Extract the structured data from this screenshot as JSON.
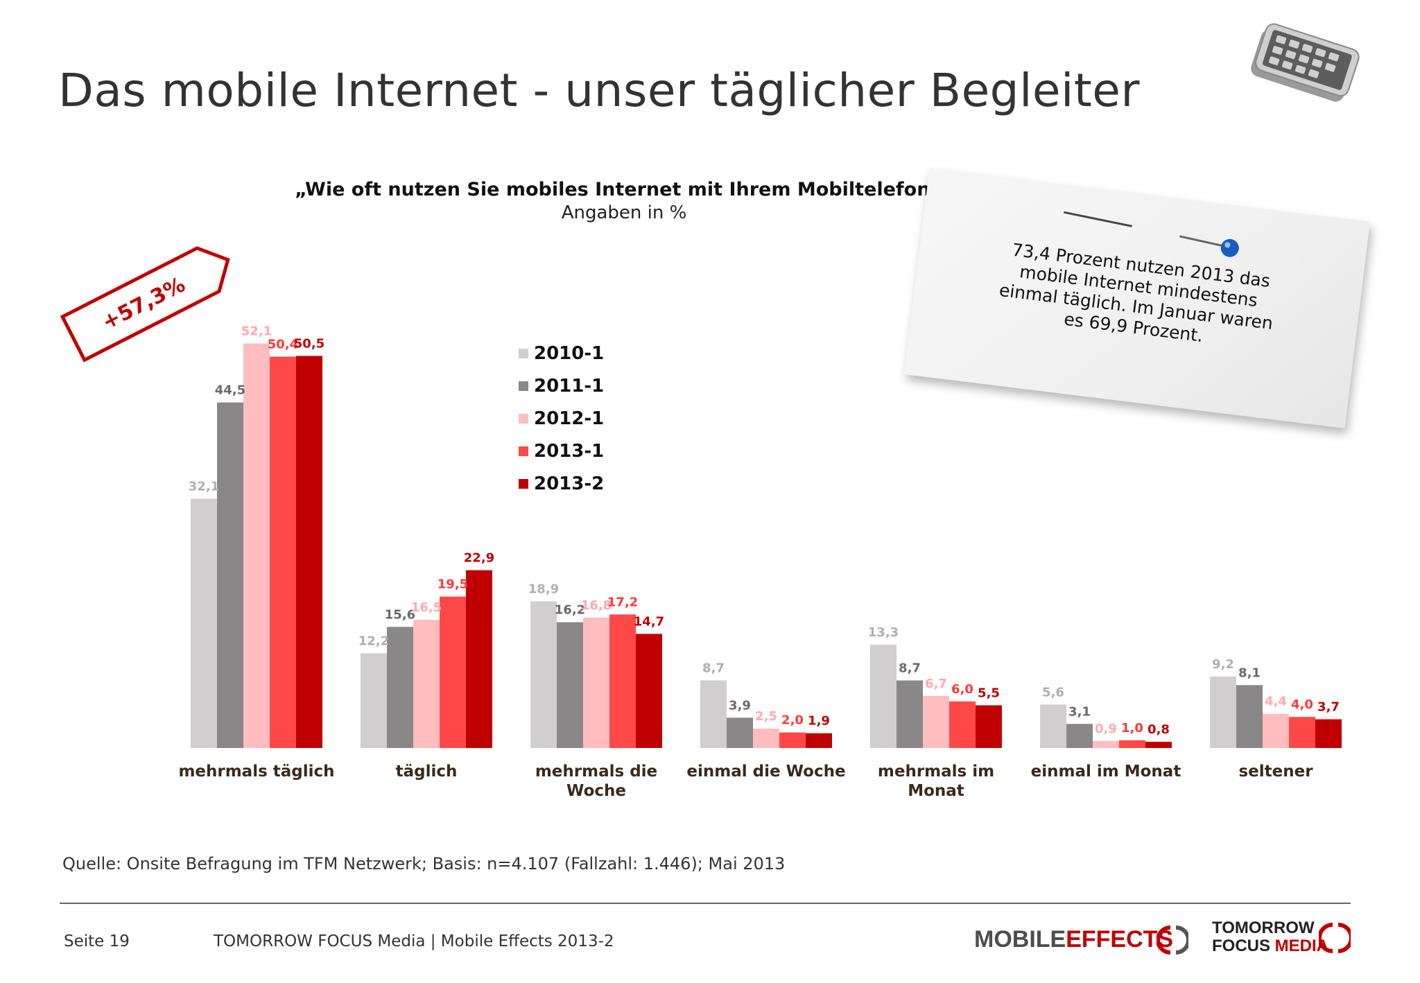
{
  "slide": {
    "title": "Das mobile Internet - unser täglicher Begleiter",
    "badge": "+57,3%",
    "note": "73,4 Prozent nutzen 2013 das mobile Internet mindestens einmal täglich. Im Januar waren es 69,9 Prozent.",
    "source": "Quelle: Onsite Befragung im TFM Netzwerk; Basis: n=4.107 (Fallzahl: 1.446); Mai 2013",
    "page": "Seite 19",
    "publication": "TOMORROW FOCUS Media | Mobile Effects 2013-2",
    "logo_mobile_effects": {
      "part1": "MOBILE",
      "part2": "EFFECTS"
    },
    "logo_tfm": {
      "line1": "TOMORROW",
      "line2a": "FOCUS",
      "line2b": "MEDIA"
    }
  },
  "colors": {
    "2010-1": "#d0cece",
    "2011-1": "#8a8788",
    "2012-1": "#ffbdc0",
    "2013-1": "#ff4848",
    "2013-2": "#c00000",
    "label_2010-1": "#b0aeae",
    "label_2011-1": "#6b696a",
    "label_2012-1": "#ffaaaf",
    "label_2013-1": "#ff3a3a",
    "label_2013-2": "#c00000",
    "category_text": "#3a2a1a"
  },
  "chart_data": {
    "type": "bar",
    "title": "„Wie oft nutzen Sie mobiles Internet mit Ihrem Mobiltelefon?“",
    "subtitle": "Angaben in %",
    "categories": [
      "mehrmals täglich",
      "täglich",
      "mehrmals die Woche",
      "einmal die Woche",
      "mehrmals im Monat",
      "einmal im Monat",
      "seltener"
    ],
    "category_lines": [
      [
        "mehrmals täglich"
      ],
      [
        "täglich"
      ],
      [
        "mehrmals die",
        "Woche"
      ],
      [
        "einmal die Woche"
      ],
      [
        "mehrmals im",
        "Monat"
      ],
      [
        "einmal im Monat"
      ],
      [
        "seltener"
      ]
    ],
    "series": [
      {
        "name": "2010-1",
        "values": [
          32.1,
          12.2,
          18.9,
          8.7,
          13.3,
          5.6,
          9.2
        ],
        "labels": [
          "32,1",
          "12,2",
          "18,9",
          "8,7",
          "13,3",
          "5,6",
          "9,2"
        ]
      },
      {
        "name": "2011-1",
        "values": [
          44.5,
          15.6,
          16.2,
          3.9,
          8.7,
          3.1,
          8.1
        ],
        "labels": [
          "44,5",
          "15,6",
          "16,2",
          "3,9",
          "8,7",
          "3,1",
          "8,1"
        ]
      },
      {
        "name": "2012-1",
        "values": [
          52.1,
          16.5,
          16.8,
          2.5,
          6.7,
          0.9,
          4.4
        ],
        "labels": [
          "52,1",
          "16,5",
          "16,8",
          "2,5",
          "6,7",
          "0,9",
          "4,4"
        ]
      },
      {
        "name": "2013-1",
        "values": [
          50.4,
          19.5,
          17.2,
          2.0,
          6.0,
          1.0,
          4.0
        ],
        "labels": [
          "50,4",
          "19,5",
          "17,2",
          "2,0",
          "6,0",
          "1,0",
          "4,0"
        ]
      },
      {
        "name": "2013-2",
        "values": [
          50.5,
          22.9,
          14.7,
          1.9,
          5.5,
          0.8,
          3.7
        ],
        "labels": [
          "50,5",
          "22,9",
          "14,7",
          "1,9",
          "5,5",
          "0,8",
          "3,7"
        ]
      }
    ],
    "ylim": [
      0,
      55
    ],
    "grid": false,
    "legend_position": "center-top"
  }
}
